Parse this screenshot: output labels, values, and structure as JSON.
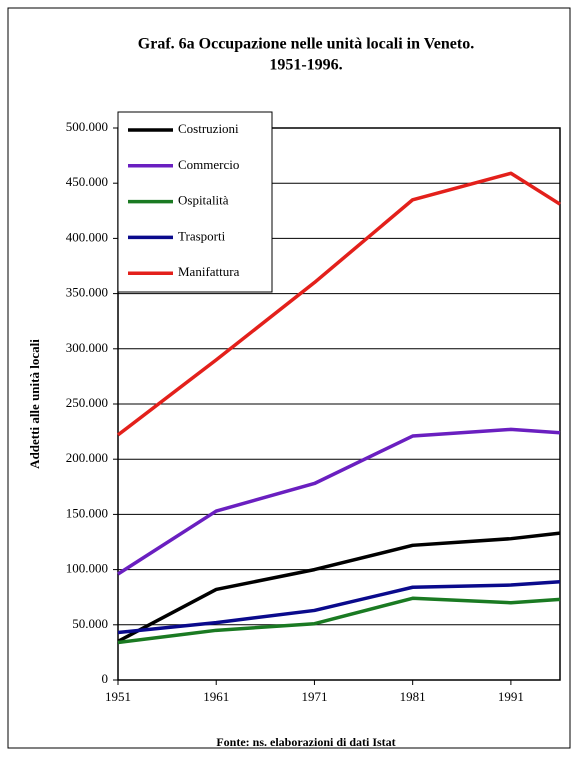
{
  "chart_data": {
    "type": "line",
    "title": "Graf. 6a  Occupazione nelle unità locali in Veneto.",
    "subtitle": "1951-1996.",
    "y_label": "Addetti alle unità locali",
    "source": "Fonte: ns. elaborazioni di dati Istat",
    "x": [
      1951,
      1961,
      1971,
      1981,
      1991,
      1996
    ],
    "xlim": [
      1951,
      1996
    ],
    "xticks": [
      1951,
      1961,
      1971,
      1981,
      1991
    ],
    "ylim": [
      0,
      500000
    ],
    "yticks": [
      0,
      {
        "value": 50000,
        "label": "50.000"
      },
      {
        "value": 100000,
        "label": "100.000"
      },
      {
        "value": 150000,
        "label": "150.000"
      },
      {
        "value": 200000,
        "label": "200.000"
      },
      {
        "value": 250000,
        "label": "250.000"
      },
      {
        "value": 300000,
        "label": "300.000"
      },
      {
        "value": 350000,
        "label": "350.000"
      },
      {
        "value": 400000,
        "label": "400.000"
      },
      {
        "value": 450000,
        "label": "450.000"
      },
      {
        "value": 500000,
        "label": "500.000"
      }
    ],
    "grid": true,
    "legend": "top-left",
    "series": [
      {
        "name": "Costruzioni",
        "color": "#000000",
        "values": [
          35000,
          82000,
          100000,
          122000,
          128000,
          133000
        ]
      },
      {
        "name": "Commercio",
        "color": "#6a1fc0",
        "values": [
          96000,
          153000,
          178000,
          221000,
          227000,
          224000
        ]
      },
      {
        "name": "Ospitalità",
        "color": "#1a7a22",
        "values": [
          34000,
          45000,
          51000,
          74000,
          70000,
          73000
        ]
      },
      {
        "name": "Trasporti",
        "color": "#0a0a8c",
        "values": [
          43000,
          52000,
          63000,
          84000,
          86000,
          89000
        ]
      },
      {
        "name": "Manifattura",
        "color": "#e3201b",
        "values": [
          222000,
          290000,
          360000,
          435000,
          459000,
          431000
        ]
      }
    ]
  }
}
